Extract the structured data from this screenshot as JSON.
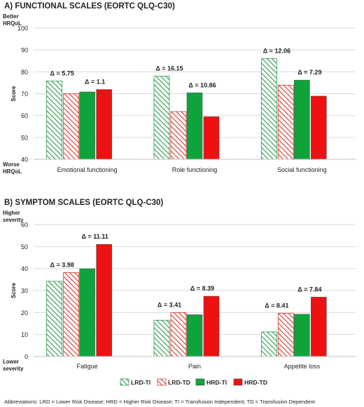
{
  "colors": {
    "lrd_ti": "#2a9a4a",
    "lrd_td": "#d9342b",
    "hrd_ti": "#0fa33c",
    "hrd_td": "#ee1111",
    "grid": "#d9d9d9",
    "text": "#222222"
  },
  "legend": [
    {
      "key": "lrd_ti",
      "label": "LRD-TI",
      "style": "hatch-green"
    },
    {
      "key": "lrd_td",
      "label": "LRD-TD",
      "style": "hatch-red"
    },
    {
      "key": "hrd_ti",
      "label": "HRD-TI",
      "style": "solid-green"
    },
    {
      "key": "hrd_td",
      "label": "HRD-TD",
      "style": "solid-red"
    }
  ],
  "abbreviations": "Abbreviations: LRD = Lower Risk Disease; HRD = Higher Risk Disease; TI = Transfusion Independent; TD = Transfusion Dependent",
  "chart_data": [
    {
      "type": "bar",
      "title": "A) FUNCTIONAL SCALES   (EORTC QLQ-C30)",
      "ylabel": "Score",
      "top_note": [
        "Better",
        "HRQoL"
      ],
      "bottom_note": [
        "Worse",
        "HRQoL"
      ],
      "ylim": [
        40,
        100
      ],
      "yticks": [
        40,
        50,
        60,
        70,
        80,
        90,
        100
      ],
      "grid": true,
      "categories": [
        "Emotional functioning",
        "Role functioning",
        "Social functioning"
      ],
      "series": [
        {
          "name": "LRD-TI",
          "key": "lrd_ti",
          "values": [
            75.8,
            78.0,
            86.0
          ]
        },
        {
          "name": "LRD-TD",
          "key": "lrd_td",
          "values": [
            70.0,
            61.8,
            73.9
          ]
        },
        {
          "name": "HRD-TI",
          "key": "hrd_ti",
          "values": [
            70.8,
            70.4,
            76.2
          ]
        },
        {
          "name": "HRD-TD",
          "key": "hrd_td",
          "values": [
            71.9,
            59.5,
            68.9
          ]
        }
      ],
      "deltas": [
        {
          "group": "lrd",
          "labels": [
            "Δ = 5.75",
            "Δ = 16.15",
            "Δ = 12.06"
          ]
        },
        {
          "group": "hrd",
          "labels": [
            "Δ = 1.1",
            "Δ = 10.86",
            "Δ = 7.29"
          ]
        }
      ]
    },
    {
      "type": "bar",
      "title": "B) SYMPTOM  SCALES   (EORTC QLQ-C30)",
      "ylabel": "Score",
      "top_note": [
        "Higher",
        "severity"
      ],
      "bottom_note": [
        "Lower",
        "severity"
      ],
      "ylim": [
        0,
        60
      ],
      "yticks": [
        0,
        10,
        20,
        30,
        40,
        50,
        60
      ],
      "grid": true,
      "categories": [
        "Fatigue",
        "Pain",
        "Appetite loss"
      ],
      "series": [
        {
          "name": "LRD-TI",
          "key": "lrd_ti",
          "values": [
            34.2,
            16.5,
            11.2
          ]
        },
        {
          "name": "LRD-TD",
          "key": "lrd_td",
          "values": [
            38.2,
            20.0,
            19.6
          ]
        },
        {
          "name": "HRD-TI",
          "key": "hrd_ti",
          "values": [
            39.9,
            19.0,
            19.2
          ]
        },
        {
          "name": "HRD-TD",
          "key": "hrd_td",
          "values": [
            51.0,
            27.4,
            27.0
          ]
        }
      ],
      "deltas": [
        {
          "group": "lrd",
          "labels": [
            "Δ = 3.98",
            "Δ = 3.41",
            "Δ = 8.41"
          ]
        },
        {
          "group": "hrd",
          "labels": [
            "Δ = 11.11",
            "Δ = 8.39",
            "Δ = 7.84"
          ]
        }
      ]
    }
  ]
}
